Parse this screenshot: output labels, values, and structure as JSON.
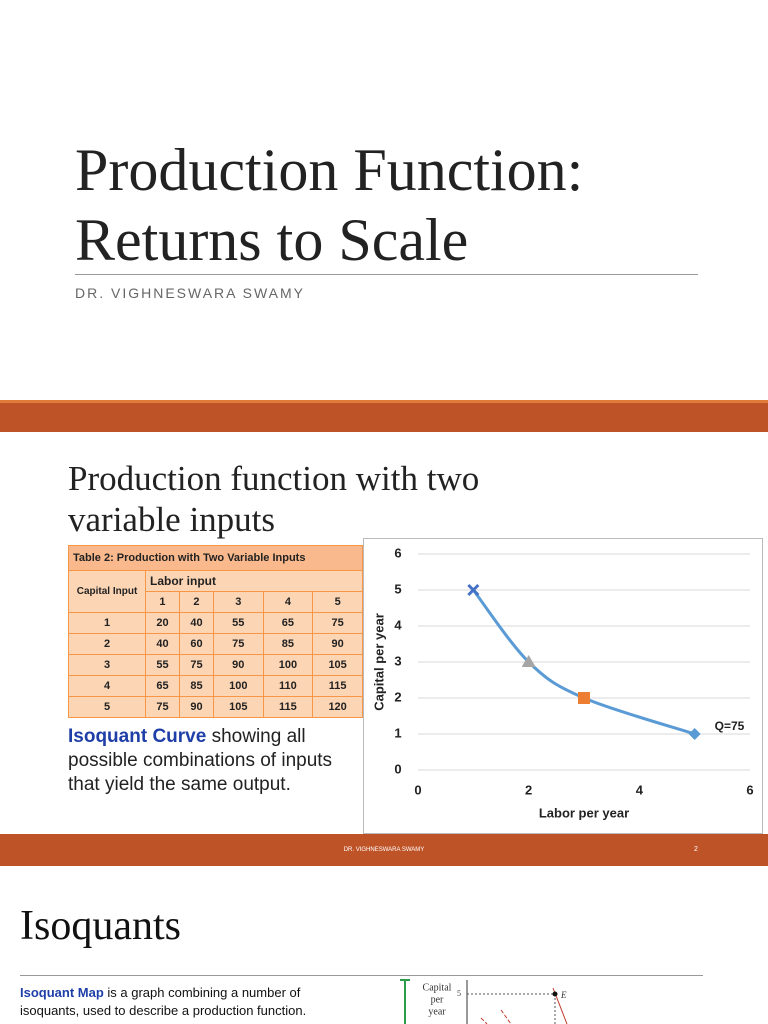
{
  "slide1": {
    "title_lines": [
      "Production Function:",
      "Returns to Scale"
    ],
    "subtitle": "DR. VIGHNESWARA SWAMY"
  },
  "slide2": {
    "title_lines": [
      "Production function with two",
      "variable inputs"
    ],
    "table": {
      "caption": "Table 2:  Production with Two Variable Inputs",
      "row_header": "Capital Input",
      "col_header": "Labor input",
      "columns": [
        1,
        2,
        3,
        4,
        5
      ],
      "rows": [
        {
          "label": 1,
          "cells": [
            20,
            40,
            55,
            65,
            75
          ]
        },
        {
          "label": 2,
          "cells": [
            40,
            60,
            75,
            85,
            90
          ]
        },
        {
          "label": 3,
          "cells": [
            55,
            75,
            90,
            100,
            105
          ]
        },
        {
          "label": 4,
          "cells": [
            65,
            85,
            100,
            110,
            115
          ]
        },
        {
          "label": 5,
          "cells": [
            75,
            90,
            105,
            115,
            120
          ]
        }
      ]
    },
    "text_highlight": "Isoquant Curve",
    "text_rest": "showing all possible combinations of inputs that yield the same output.",
    "footer": "DR. VIGHNESWARA SWAMY",
    "page_number": 2
  },
  "chart_data": {
    "type": "scatter",
    "x_label": "Labor per year",
    "y_label": "Capital per year",
    "xlim": [
      0,
      6
    ],
    "xticks": [
      0,
      2,
      4,
      6
    ],
    "ylim": [
      0,
      6
    ],
    "yticks": [
      0,
      1,
      2,
      3,
      4,
      5,
      6
    ],
    "grid": true,
    "series": [
      {
        "name": "Q=75",
        "color": "#5b9bd5",
        "x": [
          1,
          2,
          3,
          5
        ],
        "values": [
          5,
          3,
          2,
          1
        ],
        "markers": [
          "x",
          "triangle",
          "square",
          "diamond"
        ],
        "marker_colors": [
          "#4472c4",
          "#a5a5a5",
          "#ed7d31",
          "#5b9bd5"
        ]
      }
    ]
  },
  "slide3": {
    "title": "Isoquants",
    "text_highlight": "Isoquant Map",
    "text_rest": "is a graph combining a number of isoquants, used to describe a production function.",
    "figure": {
      "y_label_lines": [
        "Capital",
        "per",
        "year"
      ],
      "y_tick": 5,
      "point_label": "E"
    }
  }
}
